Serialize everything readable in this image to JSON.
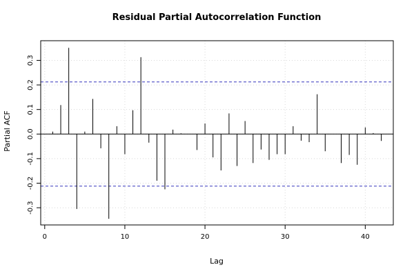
{
  "chart_data": {
    "type": "bar",
    "title": "Residual Partial Autocorrelation Function",
    "xlabel": "Lag",
    "ylabel": "Partial ACF",
    "xlim": [
      -0.5,
      43.5
    ],
    "ylim": [
      -0.37,
      0.38
    ],
    "x_ticks": [
      0,
      10,
      20,
      30,
      40
    ],
    "y_ticks": [
      -0.3,
      -0.2,
      -0.1,
      0.0,
      0.1,
      0.2,
      0.3
    ],
    "y_tick_labels": [
      "-0.3",
      "-0.2",
      "-0.1",
      "0.0",
      "0.1",
      "0.2",
      "0.3"
    ],
    "grid": true,
    "confidence_bounds": [
      0.212,
      -0.212
    ],
    "confidence_color": "#3333bb",
    "x": [
      1,
      2,
      3,
      4,
      5,
      6,
      7,
      8,
      9,
      10,
      11,
      12,
      13,
      14,
      15,
      16,
      17,
      18,
      19,
      20,
      21,
      22,
      23,
      24,
      25,
      26,
      27,
      28,
      29,
      30,
      31,
      32,
      33,
      34,
      35,
      36,
      37,
      38,
      39,
      40,
      41,
      42
    ],
    "values": [
      0.01,
      0.118,
      0.351,
      -0.305,
      0.01,
      0.143,
      -0.058,
      -0.345,
      0.032,
      -0.082,
      0.097,
      0.313,
      -0.035,
      -0.19,
      -0.225,
      0.018,
      0.003,
      0.0,
      -0.065,
      0.043,
      -0.095,
      -0.148,
      0.084,
      -0.13,
      0.053,
      -0.118,
      -0.063,
      -0.105,
      -0.082,
      -0.082,
      0.032,
      -0.027,
      -0.033,
      0.162,
      -0.07,
      0.0,
      -0.118,
      -0.085,
      -0.125,
      0.027,
      0.004,
      -0.028
    ]
  }
}
